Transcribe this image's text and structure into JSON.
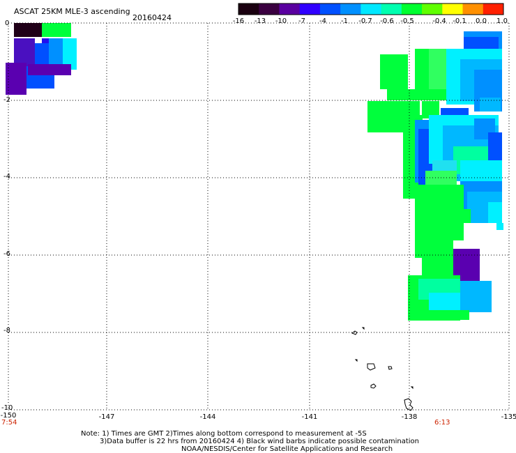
{
  "header": {
    "title": "ASCAT 25KM MLE-3 ascending",
    "date": "20160424"
  },
  "colorbar": {
    "labels": [
      "-16",
      "-13",
      "-10",
      "-7",
      "-4",
      "-1",
      "-0.7",
      "-0.6",
      "-0.5",
      "-0.4",
      "-0.1",
      "0.0",
      "1.0"
    ],
    "colors": [
      "#1a0010",
      "#3a0040",
      "#5a00a0",
      "#3000ff",
      "#0050ff",
      "#0090ff",
      "#00e8ff",
      "#00ffb0",
      "#00ff30",
      "#60ff00",
      "#ffff00",
      "#ff9000",
      "#ff2000"
    ]
  },
  "axes": {
    "y_ticks": [
      "0",
      "-2",
      "-4",
      "-6",
      "-8",
      "-10"
    ],
    "x_ticks": [
      "-150",
      "-147",
      "-144",
      "-141",
      "-138",
      "-135"
    ]
  },
  "times": {
    "left": "7:54",
    "right": "6:13"
  },
  "notes": {
    "line1": "Note: 1) Times are GMT 2)Times along bottom correspond to measurement at -5S",
    "line2": "3)Data buffer is 22 hrs from 20160424 4) Black wind barbs indicate possible contamination",
    "line3": "NOAA/NESDIS/Center for Satellite Applications and Research"
  }
}
